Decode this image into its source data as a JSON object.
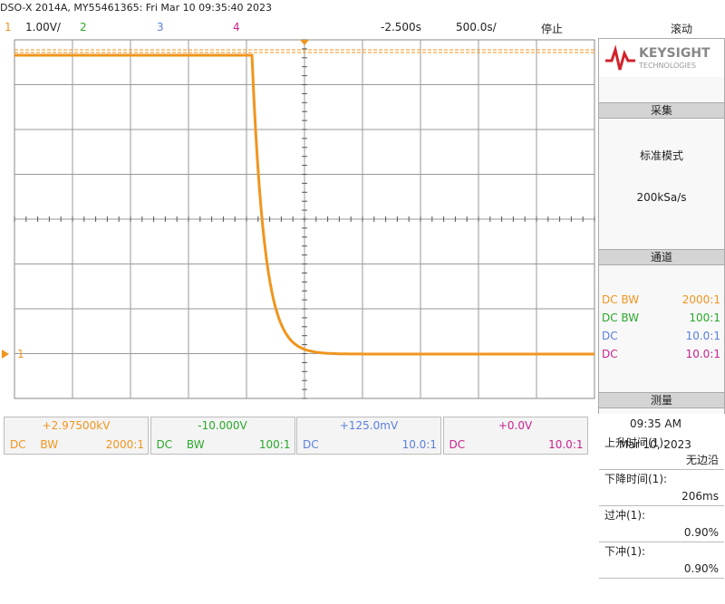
{
  "header": {
    "title": "DSO-X 2014A, MY55461365: Fri Mar 10 09:35:40 2023",
    "channels": [
      {
        "label": "1",
        "scale": "1.00V/",
        "color": "#f0951e"
      },
      {
        "label": "2",
        "color": "#2aa82a"
      },
      {
        "label": "3",
        "color": "#5a7fdc"
      },
      {
        "label": "4",
        "color": "#c8238f"
      }
    ],
    "delay": "-2.500s",
    "timebase": "500.0s/",
    "status": "停止",
    "mode": "滚动"
  },
  "ground_marker": "1",
  "sidebar": {
    "brand": "KEYSIGHT",
    "brand_sub": "TECHNOLOGIES",
    "acquisition": {
      "title": "采集",
      "mode": "标准模式",
      "rate": "200kSa/s"
    },
    "channels": {
      "title": "通道",
      "rows": [
        {
          "coupling": "DC BW",
          "ratio": "2000:1"
        },
        {
          "coupling": "DC BW",
          "ratio": "100:1"
        },
        {
          "coupling": "DC",
          "ratio": "10.0:1"
        },
        {
          "coupling": "DC",
          "ratio": "10.0:1"
        }
      ]
    },
    "measurements": {
      "title": "测量",
      "items": [
        {
          "label": "上升时间(1):",
          "value": "无边沿"
        },
        {
          "label": "下降时间(1):",
          "value": "206ms"
        },
        {
          "label": "过冲(1):",
          "value": "0.90%"
        },
        {
          "label": "下冲(1):",
          "value": "0.90%"
        }
      ]
    }
  },
  "footer": {
    "channels": [
      {
        "offset": "+2.97500kV",
        "coupling": "DC BW",
        "ratio": "2000:1"
      },
      {
        "offset": "-10.000V",
        "coupling": "DC BW",
        "ratio": "100:1"
      },
      {
        "offset": "+125.0mV",
        "coupling": "DC",
        "ratio": "10.0:1"
      },
      {
        "offset": "+0.0V",
        "coupling": "DC",
        "ratio": "10.0:1"
      }
    ],
    "time": "09:35 AM",
    "date": "Mar 10, 2023"
  }
}
